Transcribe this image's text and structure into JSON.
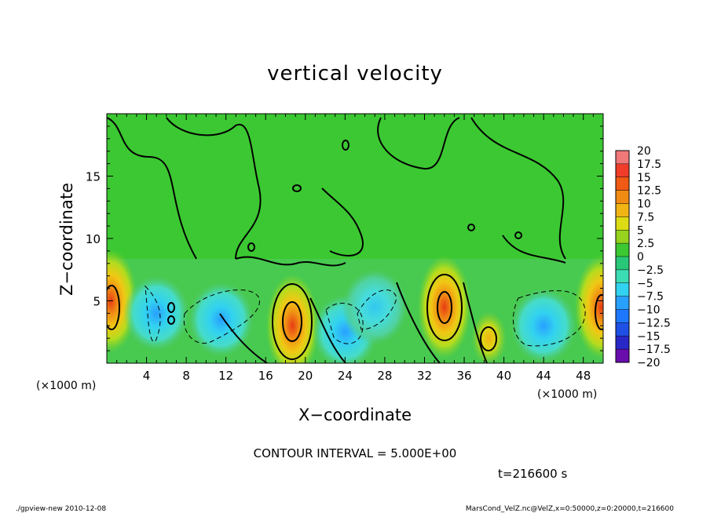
{
  "chart_data": {
    "type": "heatmap",
    "title": "vertical velocity",
    "xlabel": "X−coordinate",
    "ylabel": "Z−coordinate",
    "x_unit_label": "(×1000 m)",
    "y_unit_label": "(×1000 m)",
    "xlim": [
      0,
      50
    ],
    "ylim": [
      0,
      20
    ],
    "x_ticks": [
      4,
      8,
      12,
      16,
      20,
      24,
      28,
      32,
      36,
      40,
      44,
      48
    ],
    "x_tick_labels": [
      "4",
      "8",
      "12",
      "16",
      "20",
      "24",
      "28",
      "32",
      "36",
      "40",
      "44",
      "48"
    ],
    "y_ticks": [
      5,
      10,
      15
    ],
    "y_tick_labels": [
      "5",
      "10",
      "15"
    ],
    "contour_interval_text": "CONTOUR INTERVAL = 5.000E+00",
    "time_text": "t=216600 s",
    "footer_left": "./gpview-new  2010-12-08",
    "footer_right": "MarsCond_VelZ.nc@VelZ,x=0:50000,z=0:20000,t=216600",
    "colorbar": {
      "levels": [
        -20,
        -17.5,
        -15,
        -12.5,
        -10,
        -7.5,
        -5,
        -2.5,
        0,
        2.5,
        5,
        7.5,
        10,
        12.5,
        15,
        17.5,
        20
      ],
      "labels": [
        "20",
        "17.5",
        "15",
        "12.5",
        "10",
        "7.5",
        "5",
        "2.5",
        "0",
        "−2.5",
        "−5",
        "−7.5",
        "−10",
        "−12.5",
        "−15",
        "−17.5",
        "−20"
      ],
      "colors": [
        "#6a0dad",
        "#2828c8",
        "#1e50e6",
        "#1e78ff",
        "#28a0ff",
        "#32d2f0",
        "#3cdcb4",
        "#28c878",
        "#3cc832",
        "#96d21e",
        "#dcdc14",
        "#f0b414",
        "#f08c14",
        "#f05a14",
        "#f03c28",
        "#f07878"
      ]
    },
    "features": [
      {
        "kind": "updraft",
        "x": 0.4,
        "z": 5,
        "w": 12.5
      },
      {
        "kind": "downdraft",
        "x": 5,
        "z": 4,
        "w": -7.5
      },
      {
        "kind": "downdraft",
        "x": 11.5,
        "z": 3.5,
        "w": -7.5
      },
      {
        "kind": "updraft",
        "x": 18.7,
        "z": 3,
        "w": 15
      },
      {
        "kind": "downdraft",
        "x": 24,
        "z": 2.5,
        "w": -7.5
      },
      {
        "kind": "downdraft",
        "x": 27,
        "z": 4.5,
        "w": -5
      },
      {
        "kind": "updraft",
        "x": 34,
        "z": 4.5,
        "w": 12.5
      },
      {
        "kind": "updraft",
        "x": 38.5,
        "z": 2,
        "w": 7.5
      },
      {
        "kind": "downdraft",
        "x": 44,
        "z": 3,
        "w": -7.5
      },
      {
        "kind": "updraft",
        "x": 49.8,
        "z": 4.5,
        "w": 12.5
      }
    ]
  }
}
